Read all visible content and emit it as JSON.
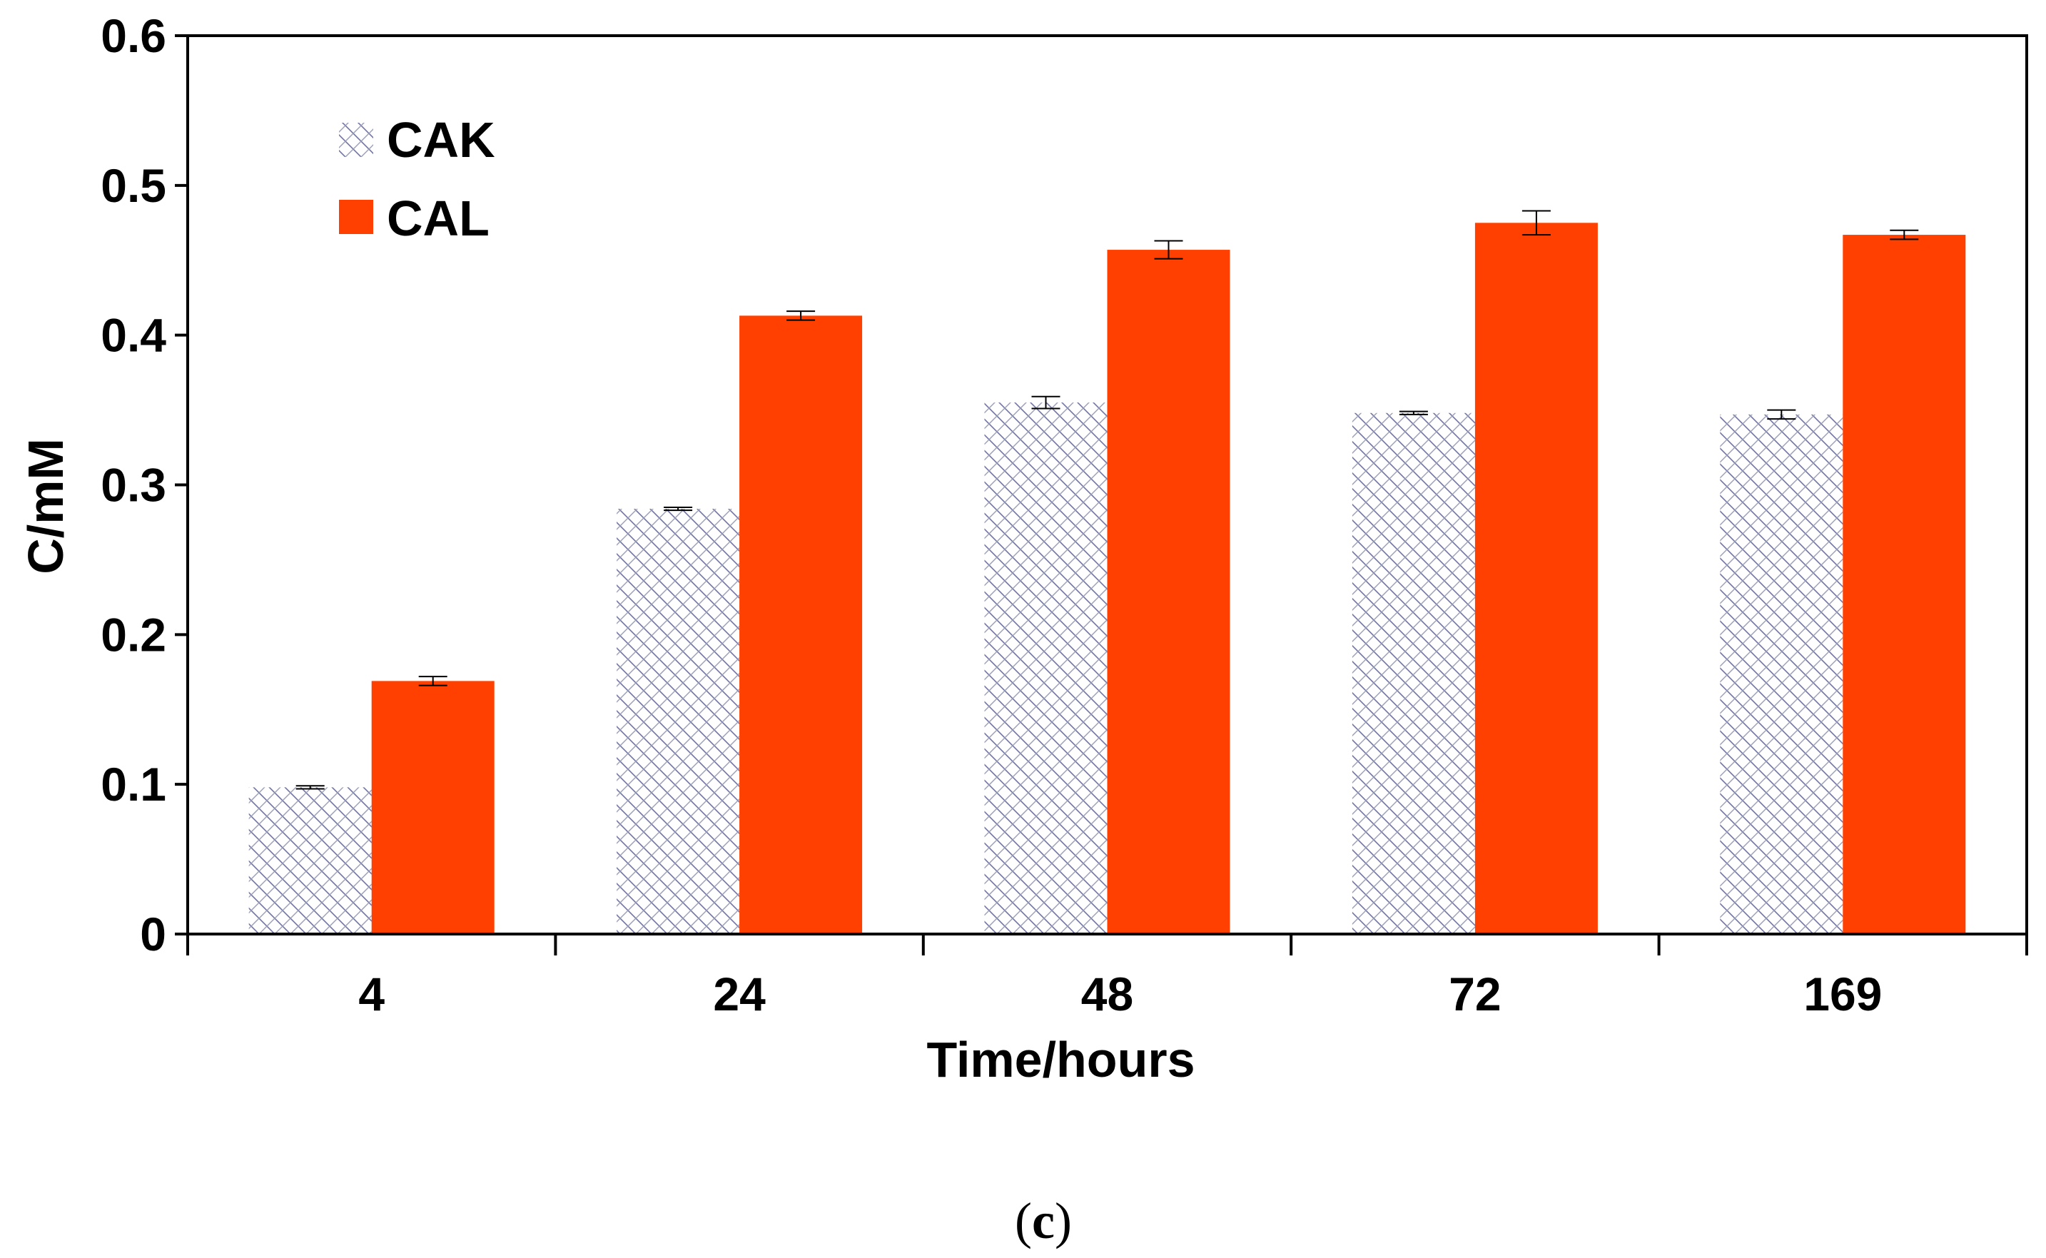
{
  "chart_data": {
    "type": "bar",
    "categories": [
      "4",
      "24",
      "48",
      "72",
      "169"
    ],
    "series": [
      {
        "name": "CAK",
        "values": [
          0.098,
          0.284,
          0.355,
          0.348,
          0.347
        ],
        "errors": [
          0.001,
          0.001,
          0.004,
          0.001,
          0.003
        ],
        "color": "#b7b9d6",
        "pattern": "crosshatch"
      },
      {
        "name": "CAL",
        "values": [
          0.169,
          0.413,
          0.457,
          0.475,
          0.467
        ],
        "errors": [
          0.003,
          0.003,
          0.006,
          0.008,
          0.003
        ],
        "color": "#ff4000",
        "pattern": "solid"
      }
    ],
    "xlabel": "Time/hours",
    "ylabel": "C/mM",
    "ylim": [
      0,
      0.6
    ],
    "yticks": [
      "0",
      "0.1",
      "0.2",
      "0.3",
      "0.4",
      "0.5",
      "0.6"
    ],
    "grid": false,
    "legend_position": "top-left"
  },
  "caption": {
    "open": "(",
    "letter": "c",
    "close": ")"
  }
}
